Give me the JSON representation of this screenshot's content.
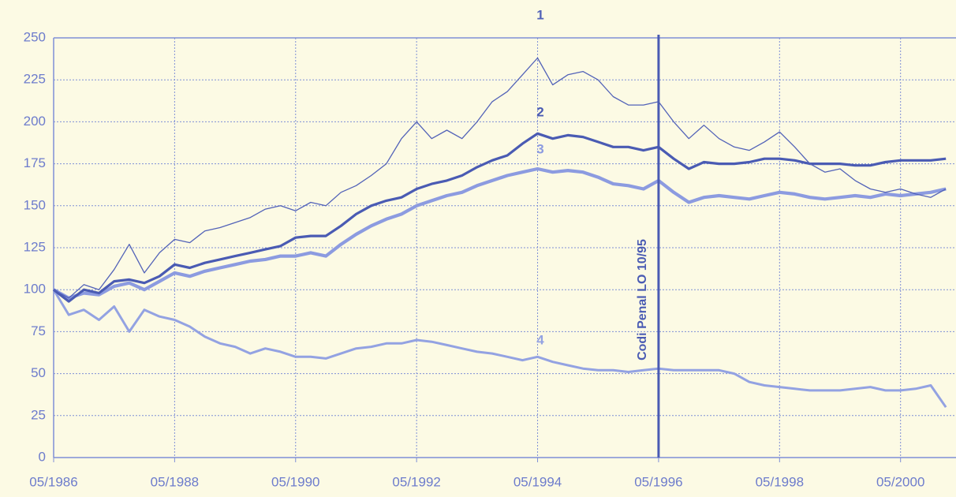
{
  "chart_data": {
    "type": "line",
    "x": [
      "1986-05",
      "1986-08",
      "1986-11",
      "1987-02",
      "1987-05",
      "1987-08",
      "1987-11",
      "1988-02",
      "1988-05",
      "1988-08",
      "1988-11",
      "1989-02",
      "1989-05",
      "1989-08",
      "1989-11",
      "1990-02",
      "1990-05",
      "1990-08",
      "1990-11",
      "1991-02",
      "1991-05",
      "1991-08",
      "1991-11",
      "1992-02",
      "1992-05",
      "1992-08",
      "1992-11",
      "1993-02",
      "1993-05",
      "1993-08",
      "1993-11",
      "1994-02",
      "1994-05",
      "1994-08",
      "1994-11",
      "1995-02",
      "1995-05",
      "1995-08",
      "1995-11",
      "1996-02",
      "1996-05",
      "1996-08",
      "1996-11",
      "1997-02",
      "1997-05",
      "1997-08",
      "1997-11",
      "1998-02",
      "1998-05",
      "1998-08",
      "1998-11",
      "1999-02",
      "1999-05",
      "1999-08",
      "1999-11",
      "2000-02",
      "2000-05",
      "2000-08",
      "2000-11",
      "2001-02"
    ],
    "series": [
      {
        "name": "1",
        "color": "#5262b8",
        "width": 1.3,
        "values": [
          100,
          95,
          103,
          100,
          112,
          127,
          110,
          122,
          130,
          128,
          135,
          137,
          140,
          143,
          148,
          150,
          147,
          152,
          150,
          158,
          162,
          168,
          175,
          190,
          200,
          190,
          195,
          190,
          200,
          212,
          218,
          228,
          238,
          222,
          228,
          230,
          225,
          215,
          210,
          210,
          212,
          200,
          190,
          198,
          190,
          185,
          183,
          188,
          194,
          185,
          175,
          170,
          172,
          165,
          160,
          158,
          160,
          157,
          155,
          160
        ]
      },
      {
        "name": "2",
        "color": "#4a5bb3",
        "width": 3.2,
        "values": [
          100,
          93,
          100,
          98,
          105,
          106,
          104,
          108,
          115,
          113,
          116,
          118,
          120,
          122,
          124,
          126,
          131,
          132,
          132,
          138,
          145,
          150,
          153,
          155,
          160,
          163,
          165,
          168,
          173,
          177,
          180,
          187,
          193,
          190,
          192,
          191,
          188,
          185,
          185,
          183,
          185,
          178,
          172,
          176,
          175,
          175,
          176,
          178,
          178,
          177,
          175,
          175,
          175,
          174,
          174,
          176,
          177,
          177,
          177,
          178
        ]
      },
      {
        "name": "3",
        "color": "#8c9be0",
        "width": 4.2,
        "values": [
          100,
          95,
          98,
          97,
          102,
          104,
          100,
          105,
          110,
          108,
          111,
          113,
          115,
          117,
          118,
          120,
          120,
          122,
          120,
          127,
          133,
          138,
          142,
          145,
          150,
          153,
          156,
          158,
          162,
          165,
          168,
          170,
          172,
          170,
          171,
          170,
          167,
          163,
          162,
          160,
          165,
          158,
          152,
          155,
          156,
          155,
          154,
          156,
          158,
          157,
          155,
          154,
          155,
          156,
          155,
          157,
          156,
          157,
          158,
          160
        ]
      },
      {
        "name": "4",
        "color": "#93a2e2",
        "width": 3,
        "values": [
          100,
          85,
          88,
          82,
          90,
          75,
          88,
          84,
          82,
          78,
          72,
          68,
          66,
          62,
          65,
          63,
          60,
          60,
          59,
          62,
          65,
          66,
          68,
          68,
          70,
          69,
          67,
          65,
          63,
          62,
          60,
          58,
          60,
          57,
          55,
          53,
          52,
          52,
          51,
          52,
          53,
          52,
          52,
          52,
          52,
          50,
          45,
          43,
          42,
          41,
          40,
          40,
          40,
          41,
          42,
          40,
          40,
          41,
          43,
          30
        ]
      }
    ],
    "xlim": [
      "1986-05",
      "2001-04"
    ],
    "xticks": [
      {
        "value": "1986-05",
        "label": "05/1986"
      },
      {
        "value": "1988-05",
        "label": "05/1988"
      },
      {
        "value": "1990-05",
        "label": "05/1990"
      },
      {
        "value": "1992-05",
        "label": "05/1992"
      },
      {
        "value": "1994-05",
        "label": "05/1994"
      },
      {
        "value": "1996-05",
        "label": "05/1996"
      },
      {
        "value": "1998-05",
        "label": "05/1998"
      },
      {
        "value": "2000-05",
        "label": "05/2000"
      }
    ],
    "ylim": [
      0,
      250
    ],
    "yticks": [
      0,
      25,
      50,
      75,
      100,
      125,
      150,
      175,
      200,
      225,
      250
    ],
    "grid": true,
    "vline": {
      "x": "1996-05",
      "label": "Codi Penal LO 10/95",
      "color": "#4a5bb3"
    }
  }
}
